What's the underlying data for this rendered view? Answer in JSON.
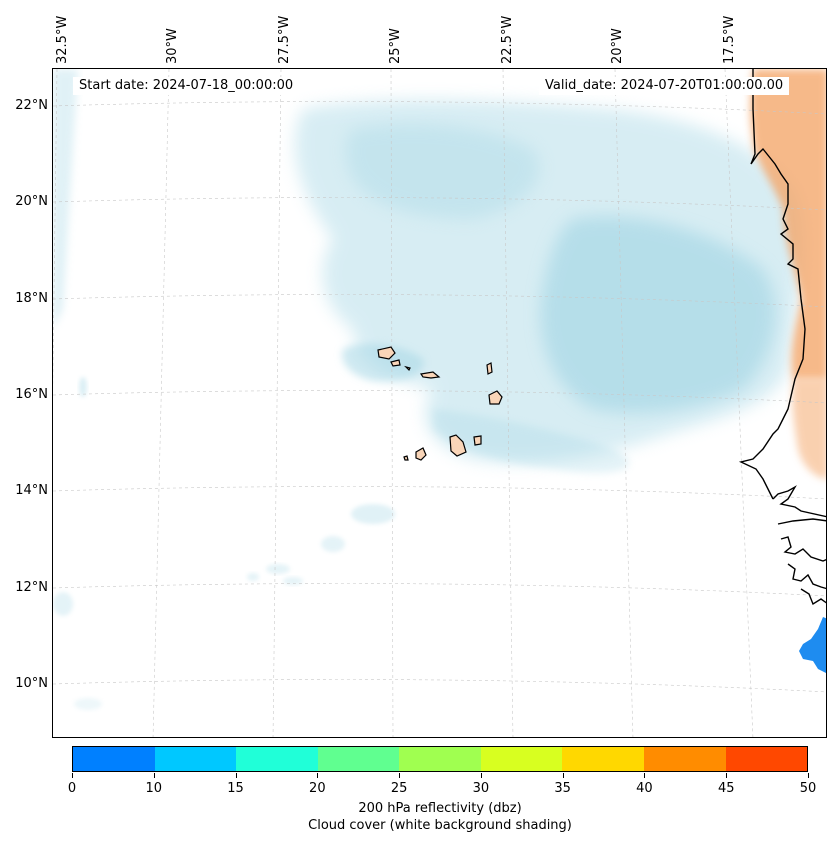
{
  "header": {
    "start_date": "Start date: 2024-07-18_00:00:00",
    "valid_date": "Valid_date: 2024-07-20T01:00:00.00"
  },
  "axes": {
    "longitude_labels": [
      "32.5°W",
      "30°W",
      "27.5°W",
      "25°W",
      "22.5°W",
      "20°W",
      "17.5°W"
    ],
    "latitude_labels": [
      "22°N",
      "20°N",
      "18°N",
      "16°N",
      "14°N",
      "12°N",
      "10°N"
    ]
  },
  "colorbar": {
    "ticks": [
      "0",
      "10",
      "15",
      "20",
      "25",
      "30",
      "35",
      "40",
      "45",
      "50"
    ],
    "colors": [
      "#0080ff",
      "#00c8ff",
      "#20ffd8",
      "#60ff90",
      "#a0ff50",
      "#d8ff20",
      "#ffd800",
      "#ff8c00",
      "#ff4800"
    ],
    "label_line1": "200 hPa reflectivity (dbz)",
    "label_line2": "Cloud cover (white background shading)"
  },
  "palette": {
    "cloud": "#a8d8e6",
    "land": "#f4a262",
    "coast": "#000000",
    "reflectivity_cell": "#1e8cf0",
    "grid": "#c8c8c8"
  }
}
